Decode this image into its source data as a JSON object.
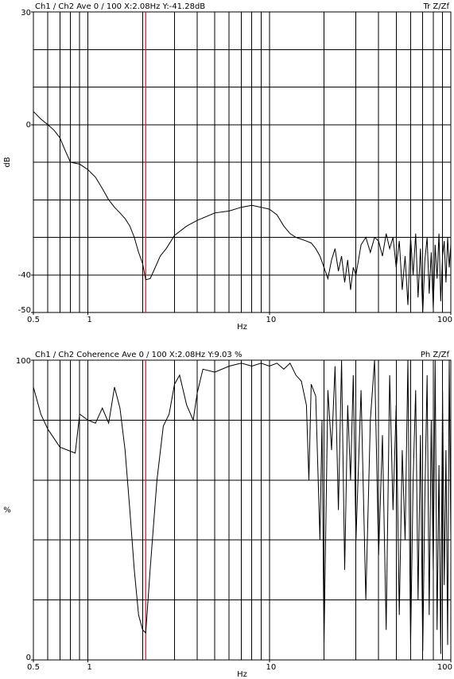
{
  "chart_data": [
    {
      "type": "line",
      "title": "Ch1 / Ch2  Ave 0 / 100  X:2.08Hz  Y:-41.28dB",
      "corner_label": "Tr Z/Zf",
      "xlabel": "Hz",
      "ylabel": "dB",
      "xscale": "log",
      "xlim": [
        0.5,
        100
      ],
      "xticks": [
        0.5,
        1,
        10,
        100
      ],
      "xgrid": [
        0.6,
        0.7,
        0.8,
        0.9,
        1,
        2,
        3,
        4,
        5,
        6,
        7,
        8,
        9,
        10,
        20,
        30,
        40,
        50,
        60,
        70,
        80,
        90
      ],
      "ylim": [
        -50,
        30
      ],
      "yticks": [
        30,
        0,
        -40,
        -50
      ],
      "ygrid": [
        20,
        10,
        0,
        -10,
        -20,
        -30,
        -40
      ],
      "cursor_x": 2.08,
      "cursor_color": "#e0202a",
      "color": "#000000",
      "x": [
        0.5,
        0.55,
        0.6,
        0.65,
        0.7,
        0.75,
        0.8,
        0.9,
        1,
        1.1,
        1.2,
        1.3,
        1.4,
        1.5,
        1.6,
        1.7,
        1.8,
        1.9,
        2,
        2.08,
        2.2,
        2.3,
        2.5,
        2.7,
        3,
        3.5,
        4,
        5,
        6,
        7,
        8,
        9,
        10,
        11,
        12,
        13,
        14,
        15,
        16,
        17,
        18,
        19,
        20,
        21,
        22,
        23,
        24,
        25,
        26,
        27,
        28,
        29,
        30,
        32,
        34,
        36,
        38,
        40,
        42,
        44,
        46,
        48,
        50,
        52,
        54,
        56,
        58,
        60,
        62,
        64,
        66,
        68,
        70,
        72,
        74,
        76,
        78,
        80,
        82,
        84,
        86,
        88,
        90,
        92,
        94,
        96,
        98,
        100
      ],
      "values": [
        3.5,
        1.5,
        0,
        -1.5,
        -3.5,
        -7,
        -10,
        -10.5,
        -12,
        -14,
        -17,
        -20,
        -22,
        -23.5,
        -25,
        -27,
        -30,
        -34,
        -37,
        -41.28,
        -41,
        -39,
        -35,
        -33,
        -29.5,
        -27,
        -25.5,
        -23.5,
        -23,
        -22,
        -21.5,
        -22,
        -22.5,
        -24,
        -27,
        -29,
        -30,
        -30.5,
        -31,
        -31.5,
        -33,
        -35,
        -38,
        -41,
        -36,
        -33,
        -39,
        -35,
        -42,
        -36,
        -44,
        -38,
        -40,
        -32,
        -30,
        -34,
        -30,
        -31,
        -35,
        -29,
        -33,
        -30,
        -38,
        -31,
        -44,
        -35,
        -48,
        -30,
        -40,
        -29,
        -46,
        -33,
        -50,
        -36,
        -30,
        -45,
        -34,
        -49,
        -32,
        -41,
        -29,
        -47,
        -35,
        -31,
        -42,
        -30,
        -38,
        -32
      ]
    },
    {
      "type": "line",
      "title": "Ch1 / Ch2  Coherence Ave 0 / 100  X:2.08Hz  Y:9.03 %",
      "corner_label": "Ph Z/Zf",
      "xlabel": "Hz",
      "ylabel": "%",
      "xscale": "log",
      "xlim": [
        0.5,
        100
      ],
      "xticks": [
        0.5,
        1,
        10,
        100
      ],
      "xgrid": [
        0.6,
        0.7,
        0.8,
        0.9,
        1,
        2,
        3,
        4,
        5,
        6,
        7,
        8,
        9,
        10,
        20,
        30,
        40,
        50,
        60,
        70,
        80,
        90
      ],
      "ylim": [
        0,
        100
      ],
      "yticks": [
        100,
        0
      ],
      "ygrid": [
        80,
        60,
        40,
        20
      ],
      "cursor_x": 2.08,
      "cursor_color": "#e0202a",
      "color": "#000000",
      "x": [
        0.5,
        0.55,
        0.6,
        0.7,
        0.85,
        0.9,
        1,
        1.1,
        1.2,
        1.3,
        1.4,
        1.5,
        1.6,
        1.7,
        1.8,
        1.9,
        2,
        2.08,
        2.2,
        2.4,
        2.6,
        2.8,
        3,
        3.2,
        3.5,
        3.8,
        4,
        4.3,
        5,
        6,
        7,
        8,
        9,
        10,
        11,
        12,
        13,
        14,
        15,
        16,
        16.5,
        17,
        18,
        19,
        19.5,
        20,
        21,
        22,
        23,
        24,
        25,
        26,
        27,
        28,
        29,
        30,
        32,
        34,
        36,
        38,
        40,
        42,
        44,
        46,
        48,
        50,
        52,
        54,
        56,
        58,
        60,
        62,
        64,
        66,
        68,
        70,
        72,
        74,
        76,
        78,
        80,
        82,
        84,
        86,
        88,
        90,
        92,
        94,
        96,
        98,
        100
      ],
      "values": [
        91,
        82,
        77,
        71,
        69,
        82,
        80,
        79,
        84,
        79,
        91,
        84,
        70,
        50,
        30,
        15,
        10,
        9.03,
        30,
        60,
        78,
        82,
        92,
        95,
        85,
        80,
        89,
        97,
        96,
        98,
        99,
        98,
        99,
        98,
        99,
        97,
        99,
        95,
        93,
        85,
        60,
        92,
        88,
        40,
        80,
        5,
        90,
        70,
        98,
        50,
        100,
        30,
        85,
        60,
        95,
        40,
        90,
        20,
        80,
        100,
        35,
        75,
        10,
        95,
        50,
        85,
        15,
        70,
        40,
        100,
        5,
        60,
        90,
        20,
        75,
        3,
        55,
        95,
        15,
        80,
        30,
        100,
        10,
        65,
        2,
        90,
        25,
        70,
        5,
        100,
        40
      ]
    }
  ]
}
